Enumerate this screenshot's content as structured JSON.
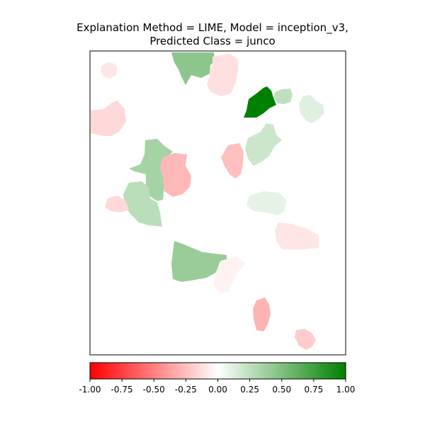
{
  "chart_data": {
    "type": "heatmap",
    "title_lines": [
      "Explanation Method = LIME, Model = inception_v3,",
      "Predicted Class = junco"
    ],
    "colorbar": {
      "min": -1.0,
      "max": 1.0,
      "ticks": [
        -1.0,
        -0.75,
        -0.5,
        -0.25,
        0.0,
        0.25,
        0.5,
        0.75,
        1.0
      ],
      "tick_labels": [
        "-1.00",
        "-0.75",
        "-0.50",
        "-0.25",
        "0.00",
        "0.25",
        "0.50",
        "0.75",
        "1.00"
      ],
      "colors": {
        "negative": "#ff0000",
        "zero": "#ffffff",
        "positive": "#008000"
      }
    },
    "segments": [
      {
        "id": "seg-top-left-small",
        "value": -0.1
      },
      {
        "id": "seg-top-center-green",
        "value": 0.45
      },
      {
        "id": "seg-top-center-pink",
        "value": -0.12
      },
      {
        "id": "seg-dark-green",
        "value": 1.0
      },
      {
        "id": "seg-top-right-light-green",
        "value": 0.25
      },
      {
        "id": "seg-far-right-light-green",
        "value": 0.12
      },
      {
        "id": "seg-left-pink",
        "value": -0.15
      },
      {
        "id": "seg-middle-pink",
        "value": -0.25
      },
      {
        "id": "seg-right-mid-green",
        "value": 0.2
      },
      {
        "id": "seg-left-green-upper",
        "value": 0.35
      },
      {
        "id": "seg-center-pink",
        "value": -0.28
      },
      {
        "id": "seg-left-green-lower",
        "value": 0.27
      },
      {
        "id": "seg-small-left-pink",
        "value": -0.15
      },
      {
        "id": "seg-center-faint-green",
        "value": 0.1
      },
      {
        "id": "seg-right-pink",
        "value": -0.1
      },
      {
        "id": "seg-bottom-green",
        "value": 0.4
      },
      {
        "id": "seg-bottom-faint-pink",
        "value": -0.05
      },
      {
        "id": "seg-bottom-center-pink",
        "value": -0.3
      },
      {
        "id": "seg-bottom-right-pink",
        "value": -0.2
      }
    ]
  }
}
